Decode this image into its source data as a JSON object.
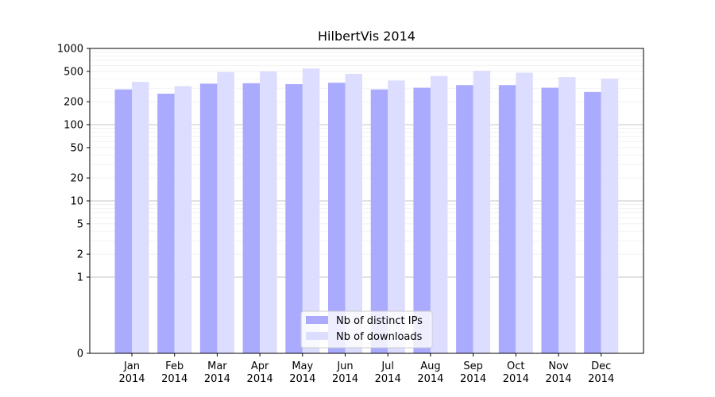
{
  "chart_data": {
    "type": "bar",
    "title": "HilbertVis 2014",
    "xlabel": "",
    "ylabel": "",
    "yscale": "symlog",
    "ylim": [
      0,
      1000
    ],
    "yticks": [
      0,
      1,
      2,
      5,
      10,
      20,
      50,
      100,
      200,
      500,
      1000
    ],
    "grid": true,
    "legend_position": "bottom-center",
    "categories": [
      [
        "Jan",
        "2014"
      ],
      [
        "Feb",
        "2014"
      ],
      [
        "Mar",
        "2014"
      ],
      [
        "Apr",
        "2014"
      ],
      [
        "May",
        "2014"
      ],
      [
        "Jun",
        "2014"
      ],
      [
        "Jul",
        "2014"
      ],
      [
        "Aug",
        "2014"
      ],
      [
        "Sep",
        "2014"
      ],
      [
        "Oct",
        "2014"
      ],
      [
        "Nov",
        "2014"
      ],
      [
        "Dec",
        "2014"
      ]
    ],
    "series": [
      {
        "name": "Nb of distinct IPs",
        "color": "#aaaaff",
        "values": [
          290,
          255,
          345,
          350,
          340,
          355,
          290,
          305,
          330,
          330,
          305,
          268
        ]
      },
      {
        "name": "Nb of downloads",
        "color": "#ddddff",
        "values": [
          365,
          320,
          490,
          500,
          545,
          465,
          380,
          435,
          510,
          480,
          420,
          400
        ]
      }
    ]
  }
}
